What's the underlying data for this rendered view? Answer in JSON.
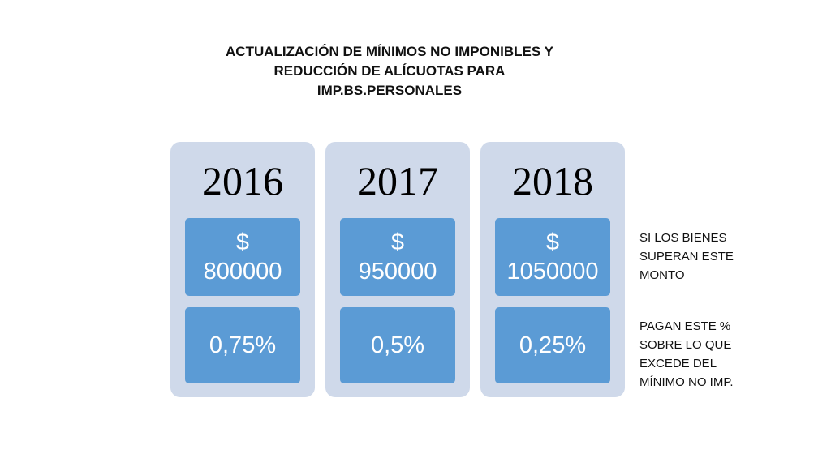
{
  "title": {
    "line1": "ACTUALIZACIÓN DE MÍNIMOS NO IMPONIBLES Y",
    "line2": "REDUCCIÓN DE ALÍCUOTAS PARA",
    "line3": "IMP.BS.PERSONALES"
  },
  "columns": [
    {
      "year": "2016",
      "currency": "$",
      "amount": "800000",
      "rate": "0,75%"
    },
    {
      "year": "2017",
      "currency": "$",
      "amount": "950000",
      "rate": "0,5%"
    },
    {
      "year": "2018",
      "currency": "$",
      "amount": "1050000",
      "rate": "0,25%"
    }
  ],
  "notes": {
    "threshold": {
      "line1": "SI LOS BIENES",
      "line2": "SUPERAN ESTE",
      "line3": "MONTO"
    },
    "rate": {
      "line1": "PAGAN ESTE %",
      "line2": "SOBRE LO QUE",
      "line3": "EXCEDE DEL",
      "line4": "MÍNIMO NO IMP."
    }
  },
  "colors": {
    "column_bg": "#cfd9ea",
    "box_bg": "#5b9bd5",
    "box_text": "#ffffff"
  }
}
